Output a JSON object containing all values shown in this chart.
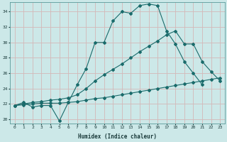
{
  "xlabel": "Humidex (Indice chaleur)",
  "bg_color": "#cce8e8",
  "grid_color": "#b0d0d0",
  "line_color": "#1a6b6b",
  "xlim": [
    -0.5,
    23.5
  ],
  "ylim": [
    19.5,
    35.2
  ],
  "yticks": [
    20,
    22,
    24,
    26,
    28,
    30,
    32,
    34
  ],
  "xticks": [
    0,
    1,
    2,
    3,
    4,
    5,
    6,
    7,
    8,
    9,
    10,
    11,
    12,
    13,
    14,
    15,
    16,
    17,
    18,
    19,
    20,
    21,
    22,
    23
  ],
  "series": [
    {
      "x": [
        0,
        1,
        2,
        3,
        4,
        5,
        6,
        7,
        8,
        9,
        10,
        11,
        12,
        13,
        14,
        15,
        16,
        17,
        18,
        19,
        20,
        21
      ],
      "y": [
        21.8,
        22.2,
        21.6,
        21.8,
        21.8,
        19.8,
        22.2,
        24.5,
        26.6,
        30.0,
        30.0,
        32.8,
        34.0,
        33.8,
        34.8,
        35.0,
        34.8,
        31.5,
        29.8,
        27.5,
        26.0,
        24.5
      ]
    },
    {
      "x": [
        0,
        1,
        2,
        3,
        4,
        5,
        6,
        7,
        8,
        9,
        10,
        11,
        12,
        13,
        14,
        15,
        16,
        17,
        18,
        19,
        20,
        21,
        22,
        23
      ],
      "y": [
        21.8,
        22.0,
        22.2,
        22.3,
        22.5,
        22.6,
        22.8,
        23.2,
        24.0,
        25.0,
        25.8,
        26.5,
        27.2,
        28.0,
        28.8,
        29.5,
        30.2,
        31.0,
        31.5,
        29.8,
        29.8,
        27.5,
        26.2,
        25.0
      ]
    },
    {
      "x": [
        0,
        1,
        2,
        3,
        4,
        5,
        6,
        7,
        8,
        9,
        10,
        11,
        12,
        13,
        14,
        15,
        16,
        17,
        18,
        19,
        20,
        21,
        22,
        23
      ],
      "y": [
        21.8,
        21.9,
        22.0,
        22.1,
        22.1,
        22.1,
        22.2,
        22.3,
        22.5,
        22.7,
        22.8,
        23.0,
        23.2,
        23.4,
        23.6,
        23.8,
        24.0,
        24.2,
        24.4,
        24.6,
        24.8,
        25.0,
        25.2,
        25.4
      ]
    }
  ]
}
